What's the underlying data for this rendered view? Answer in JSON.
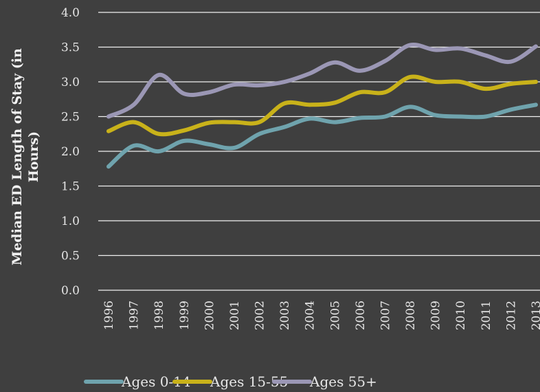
{
  "chart_data": {
    "type": "line",
    "y_label": "Median ED Length of Stay (in Hours)",
    "categories": [
      "1996",
      "1997",
      "1998",
      "1999",
      "2000",
      "2001",
      "2002",
      "2003",
      "2004",
      "2005",
      "2006",
      "2007",
      "2008",
      "2009",
      "2010",
      "2011",
      "2012",
      "2013"
    ],
    "series": [
      {
        "name": "Ages 0-14",
        "color": "#6fa3ad",
        "values": [
          1.78,
          2.08,
          2.0,
          2.15,
          2.1,
          2.05,
          2.25,
          2.35,
          2.47,
          2.42,
          2.48,
          2.5,
          2.64,
          2.52,
          2.5,
          2.5,
          2.6,
          2.67
        ]
      },
      {
        "name": "Ages 15-55",
        "color": "#c9b21a",
        "values": [
          2.29,
          2.42,
          2.25,
          2.3,
          2.41,
          2.42,
          2.42,
          2.69,
          2.67,
          2.7,
          2.85,
          2.85,
          3.07,
          3.0,
          3.0,
          2.9,
          2.97,
          3.0
        ]
      },
      {
        "name": "Ages 55+",
        "color": "#9b97b5",
        "values": [
          2.5,
          2.67,
          3.1,
          2.83,
          2.85,
          2.96,
          2.95,
          3.0,
          3.12,
          3.28,
          3.16,
          3.3,
          3.53,
          3.46,
          3.48,
          3.38,
          3.29,
          3.51
        ]
      }
    ],
    "ylim": [
      0,
      4
    ],
    "yticks": [
      {
        "value": 0,
        "label": "0.0"
      },
      0.5,
      {
        "value": 1,
        "label": "1.0"
      },
      1.5,
      {
        "value": 2,
        "label": "2.0"
      },
      2.5,
      {
        "value": 3,
        "label": "3.0"
      },
      3.5,
      {
        "value": 4,
        "label": "4.0"
      }
    ],
    "grid": true
  }
}
